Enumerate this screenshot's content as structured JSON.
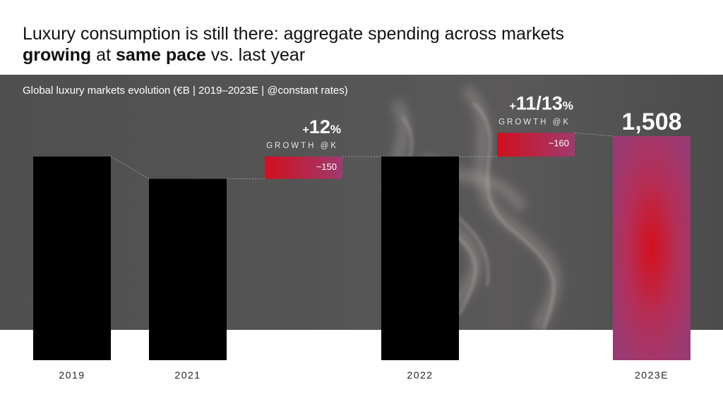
{
  "title": {
    "part1": "Luxury consumption is still there: aggregate spending across markets",
    "part2_bold": "growing",
    "part3": " at ",
    "part4_bold": "same pace",
    "part5": " vs. last year"
  },
  "colors": {
    "bar_black": "#000000",
    "bridge_red": "#d0101e",
    "bridge_purple": "#a03a6e",
    "highlight_purple": "#9a3a72"
  },
  "chart_data": {
    "type": "bar",
    "subtitle": "Global luxury markets evolution (€B | 2019–2023E | @constant rates)",
    "ylim": [
      0,
      1700
    ],
    "bars": [
      {
        "label": "2019",
        "value": 1370,
        "style": "base"
      },
      {
        "label": "2021",
        "value": 1220,
        "style": "base"
      },
      {
        "label": "",
        "value": 150,
        "base": 1220,
        "style": "increment",
        "inside_label": "~150",
        "growth_main": "12",
        "growth_suffix": "%",
        "growth_caption": "GROWTH @K"
      },
      {
        "label": "2022",
        "value": 1370,
        "style": "base"
      },
      {
        "label": "",
        "value": 160,
        "base": 1370,
        "style": "increment",
        "inside_label": "~160",
        "growth_main": "11/13",
        "growth_suffix": "%",
        "growth_caption": "GROWTH @K"
      },
      {
        "label": "2023E",
        "value": 1508,
        "style": "highlight",
        "value_label": "1,508"
      }
    ]
  }
}
